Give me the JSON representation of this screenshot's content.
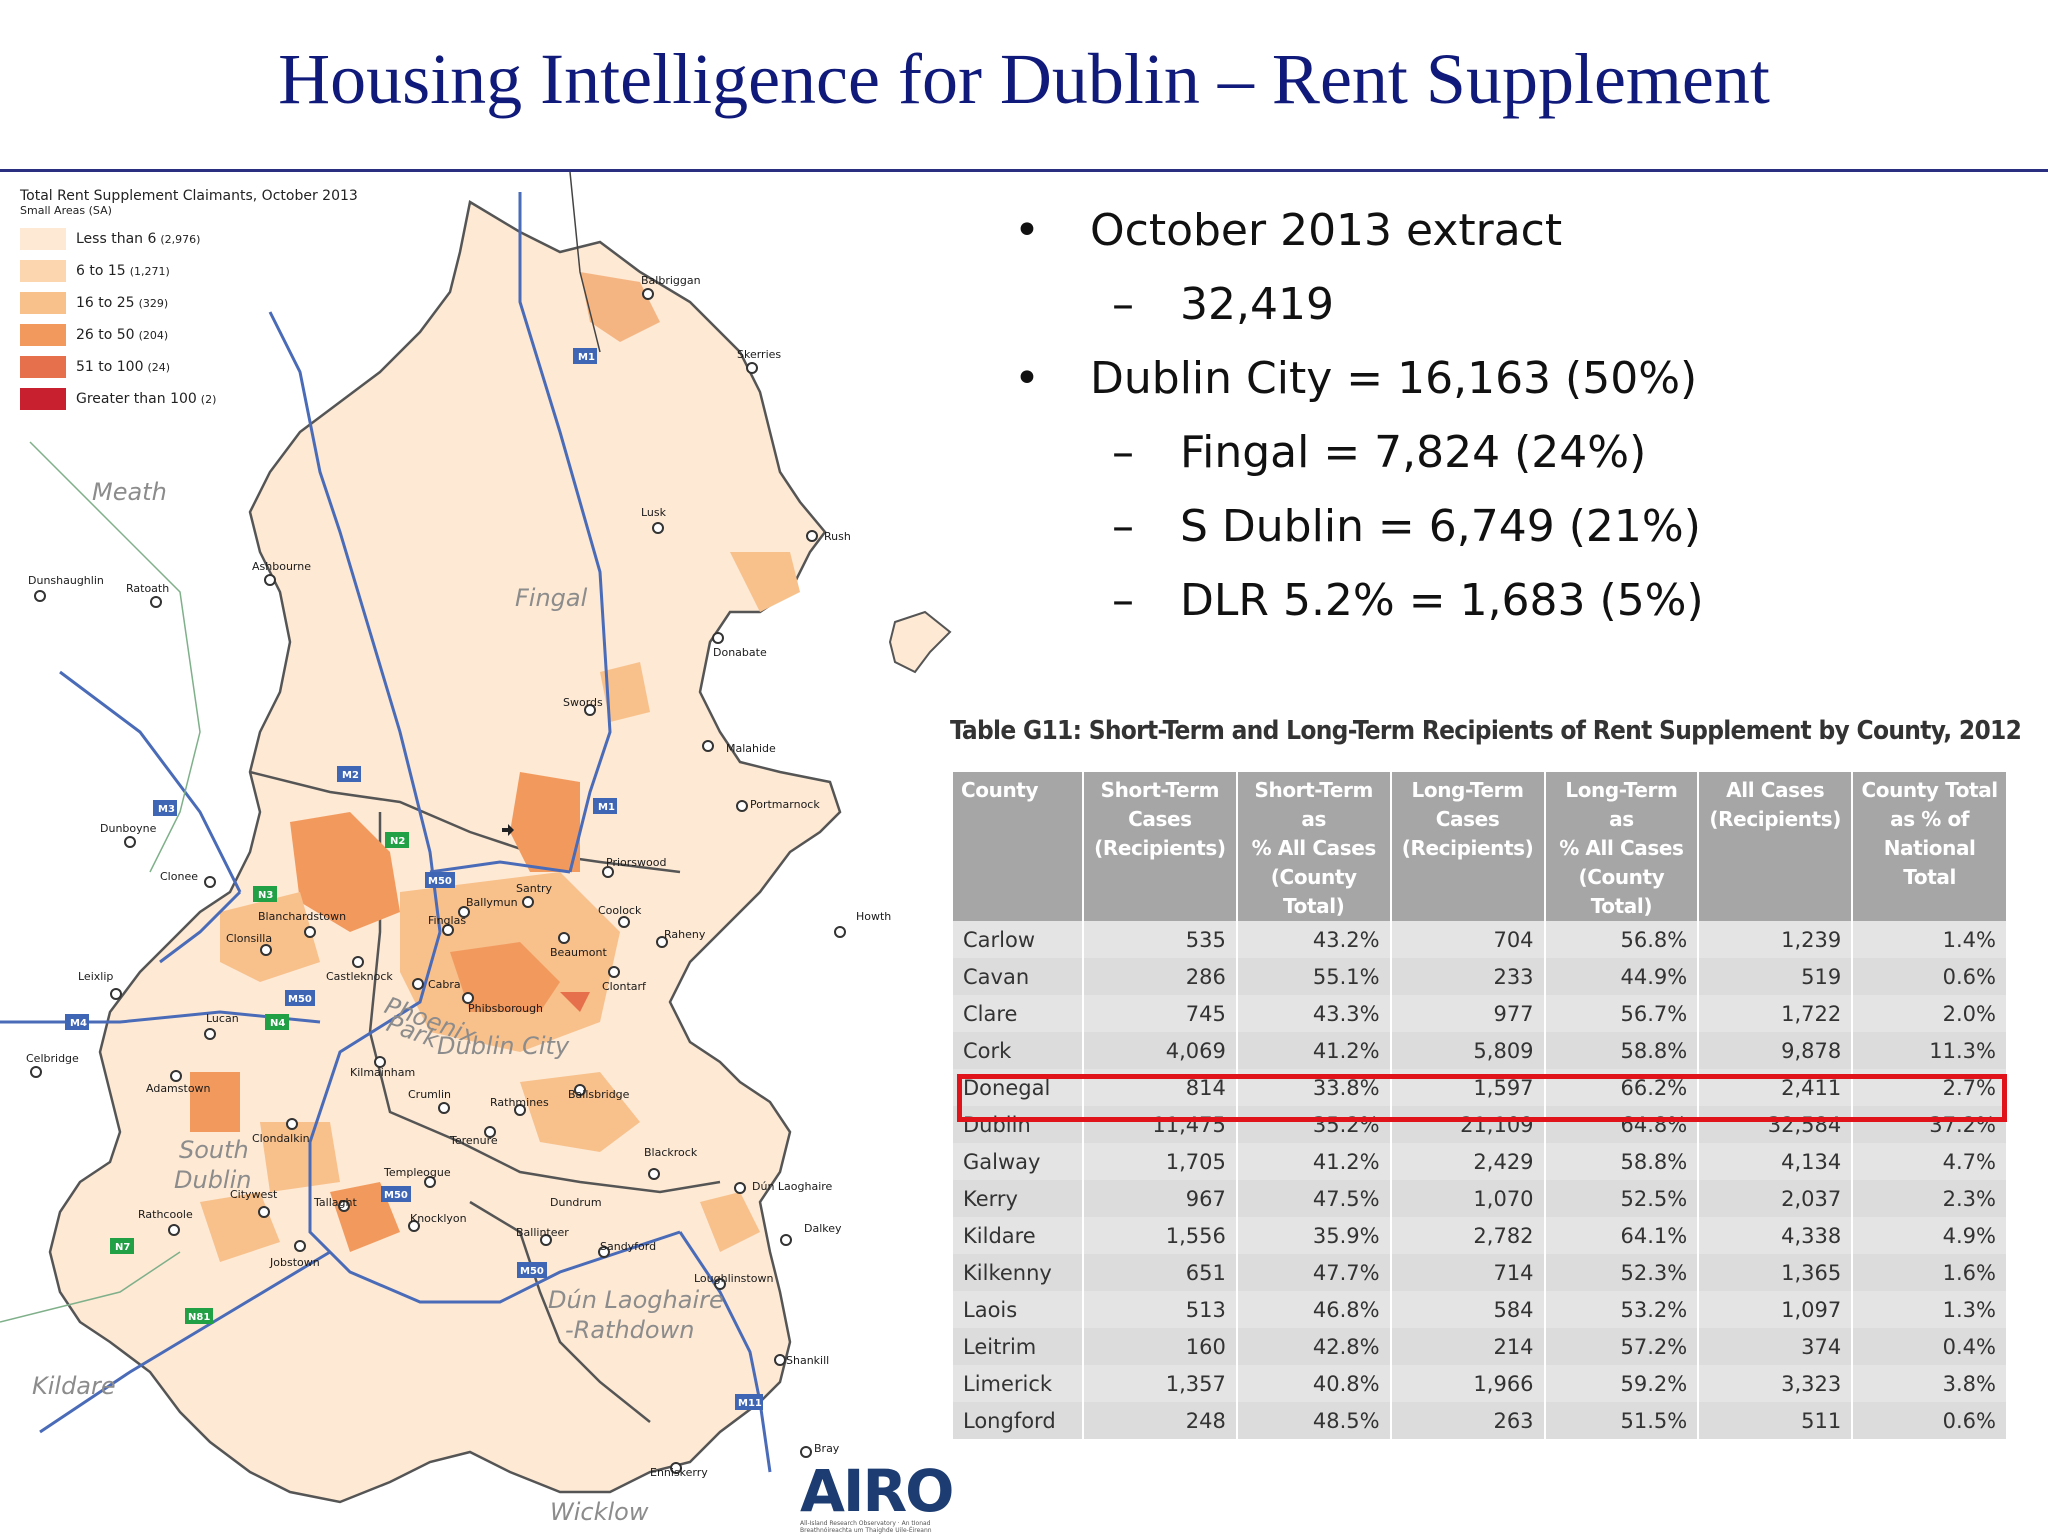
{
  "title": "Housing Intelligence for Dublin – Rent Supplement",
  "colors": {
    "title": "#101a7a",
    "legend": [
      "#fde9d4",
      "#fbd6ae",
      "#f8c08b",
      "#f29a5e",
      "#e6704b",
      "#c8202e"
    ],
    "highlight": "#e0131b",
    "table_header": "#a6a6a6",
    "logo": "#1d3d72"
  },
  "legend": {
    "title": "Total Rent Supplement Claimants, October 2013",
    "subtitle": "Small Areas (SA)",
    "items": [
      {
        "label": "Less than 6",
        "count": "(2,976)"
      },
      {
        "label": "6 to 15",
        "count": "(1,271)"
      },
      {
        "label": "16 to 25",
        "count": "(329)"
      },
      {
        "label": "26 to 50",
        "count": "(204)"
      },
      {
        "label": "51 to 100",
        "count": "(24)"
      },
      {
        "label": "Greater than 100",
        "count": "(2)"
      }
    ]
  },
  "map": {
    "regions": [
      "Meath",
      "Fingal",
      "Dublin City",
      "South",
      "Dublin",
      "Dún Laoghaire",
      "-Rathdown",
      "Kildare",
      "Wicklow",
      "Phoenix",
      "Park"
    ],
    "places": [
      "Balbriggan",
      "Skerries",
      "Rush",
      "Lusk",
      "Donabate",
      "Swords",
      "Malahide",
      "Portmarnock",
      "Howth",
      "Priorswood",
      "Santry",
      "Ballymun",
      "Coolock",
      "Raheny",
      "Beaumont",
      "Clontarf",
      "Finglas",
      "Cabra",
      "Phibsborough",
      "Blanchardstown",
      "Clonsilla",
      "Castleknock",
      "Clonee",
      "Dunboyne",
      "Ashbourne",
      "Ratoath",
      "Dunshaughlin",
      "Leixlip",
      "Lucan",
      "Celbridge",
      "Adamstown",
      "Kilmainham",
      "Crumlin",
      "Rathmines",
      "Ballsbridge",
      "Terenure",
      "Clondalkin",
      "Templeogue",
      "Tallaght",
      "Citywest",
      "Rathcoole",
      "Jobstown",
      "Knocklyon",
      "Ballinteer",
      "Dundrum",
      "Blackrock",
      "Dún Laoghaire",
      "Dalkey",
      "Sandyford",
      "Loughlinstown",
      "Shankill",
      "Bray",
      "Enniskerry"
    ],
    "roads": [
      "M1",
      "M2",
      "M3",
      "N2",
      "N3",
      "M50",
      "N4",
      "M4",
      "N7",
      "N81",
      "M11"
    ]
  },
  "bullets": [
    {
      "level": 1,
      "marker": "•",
      "text": "October 2013 extract"
    },
    {
      "level": 2,
      "marker": "–",
      "text": "32,419"
    },
    {
      "level": 1,
      "marker": "•",
      "text": "Dublin City = 16,163 (50%)"
    },
    {
      "level": 2,
      "marker": "–",
      "text": "Fingal = 7,824 (24%)"
    },
    {
      "level": 2,
      "marker": "–",
      "text": "S Dublin = 6,749 (21%)"
    },
    {
      "level": 2,
      "marker": "–",
      "text": "DLR 5.2% = 1,683 (5%)"
    }
  ],
  "table": {
    "title": "Table G11: Short-Term and Long-Term Recipients of Rent Supplement by County, 2012",
    "columns": [
      "County",
      "Short-Term Cases (Recipients)",
      "Short-Term as % All Cases (County Total)",
      "Long-Term Cases (Recipients)",
      "Long-Term as % All Cases (County Total)",
      "All Cases (Recipients)",
      "County Total as % of National Total"
    ],
    "column_lines": [
      [
        "County"
      ],
      [
        "Short-Term",
        "Cases",
        "(Recipients)"
      ],
      [
        "Short-Term as",
        "% All Cases",
        "(County",
        "Total)"
      ],
      [
        "Long-Term",
        "Cases",
        "(Recipients)"
      ],
      [
        "Long-Term as",
        "% All Cases",
        "(County",
        "Total)"
      ],
      [
        "All Cases",
        "(Recipients)"
      ],
      [
        "County Total",
        "as % of",
        "National",
        "Total"
      ]
    ],
    "highlighted_row": "Dublin",
    "rows": [
      [
        "Carlow",
        "535",
        "43.2%",
        "704",
        "56.8%",
        "1,239",
        "1.4%"
      ],
      [
        "Cavan",
        "286",
        "55.1%",
        "233",
        "44.9%",
        "519",
        "0.6%"
      ],
      [
        "Clare",
        "745",
        "43.3%",
        "977",
        "56.7%",
        "1,722",
        "2.0%"
      ],
      [
        "Cork",
        "4,069",
        "41.2%",
        "5,809",
        "58.8%",
        "9,878",
        "11.3%"
      ],
      [
        "Donegal",
        "814",
        "33.8%",
        "1,597",
        "66.2%",
        "2,411",
        "2.7%"
      ],
      [
        "Dublin",
        "11,475",
        "35.2%",
        "21,109",
        "64.8%",
        "32,584",
        "37.2%"
      ],
      [
        "Galway",
        "1,705",
        "41.2%",
        "2,429",
        "58.8%",
        "4,134",
        "4.7%"
      ],
      [
        "Kerry",
        "967",
        "47.5%",
        "1,070",
        "52.5%",
        "2,037",
        "2.3%"
      ],
      [
        "Kildare",
        "1,556",
        "35.9%",
        "2,782",
        "64.1%",
        "4,338",
        "4.9%"
      ],
      [
        "Kilkenny",
        "651",
        "47.7%",
        "714",
        "52.3%",
        "1,365",
        "1.6%"
      ],
      [
        "Laois",
        "513",
        "46.8%",
        "584",
        "53.2%",
        "1,097",
        "1.3%"
      ],
      [
        "Leitrim",
        "160",
        "42.8%",
        "214",
        "57.2%",
        "374",
        "0.4%"
      ],
      [
        "Limerick",
        "1,357",
        "40.8%",
        "1,966",
        "59.2%",
        "3,323",
        "3.8%"
      ],
      [
        "Longford",
        "248",
        "48.5%",
        "263",
        "51.5%",
        "511",
        "0.6%"
      ]
    ]
  },
  "logo": {
    "text": "AIRO",
    "subtitle": "All-Island Research Observatory · An tIonad Breathnóireachta um Thaighde Uile-Éireann"
  }
}
